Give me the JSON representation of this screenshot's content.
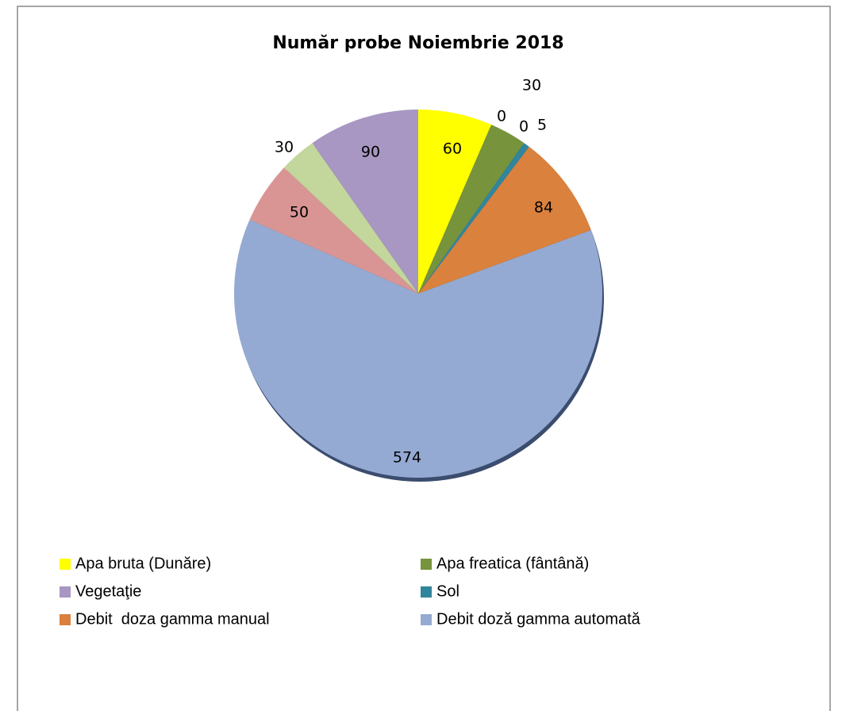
{
  "chart_data": {
    "type": "pie",
    "title": "Număr probe Noiembrie 2018",
    "categories": [
      "Apa bruta (Dunăre)",
      "Apa freatica (fântână)",
      null,
      null,
      "Sol",
      "Debit  doza gamma manual",
      "Debit doză gamma automată",
      null,
      null,
      "Vegetaţie"
    ],
    "values": [
      60,
      30,
      0,
      0,
      5,
      84,
      574,
      50,
      30,
      90
    ],
    "colors": [
      "#ffff00",
      "#77933c",
      "#4f81bd",
      "#c0504d",
      "#31859c",
      "#d9813d",
      "#95aad3",
      "#d99594",
      "#c3d69b",
      "#a797c2"
    ],
    "legend": "bottom"
  }
}
